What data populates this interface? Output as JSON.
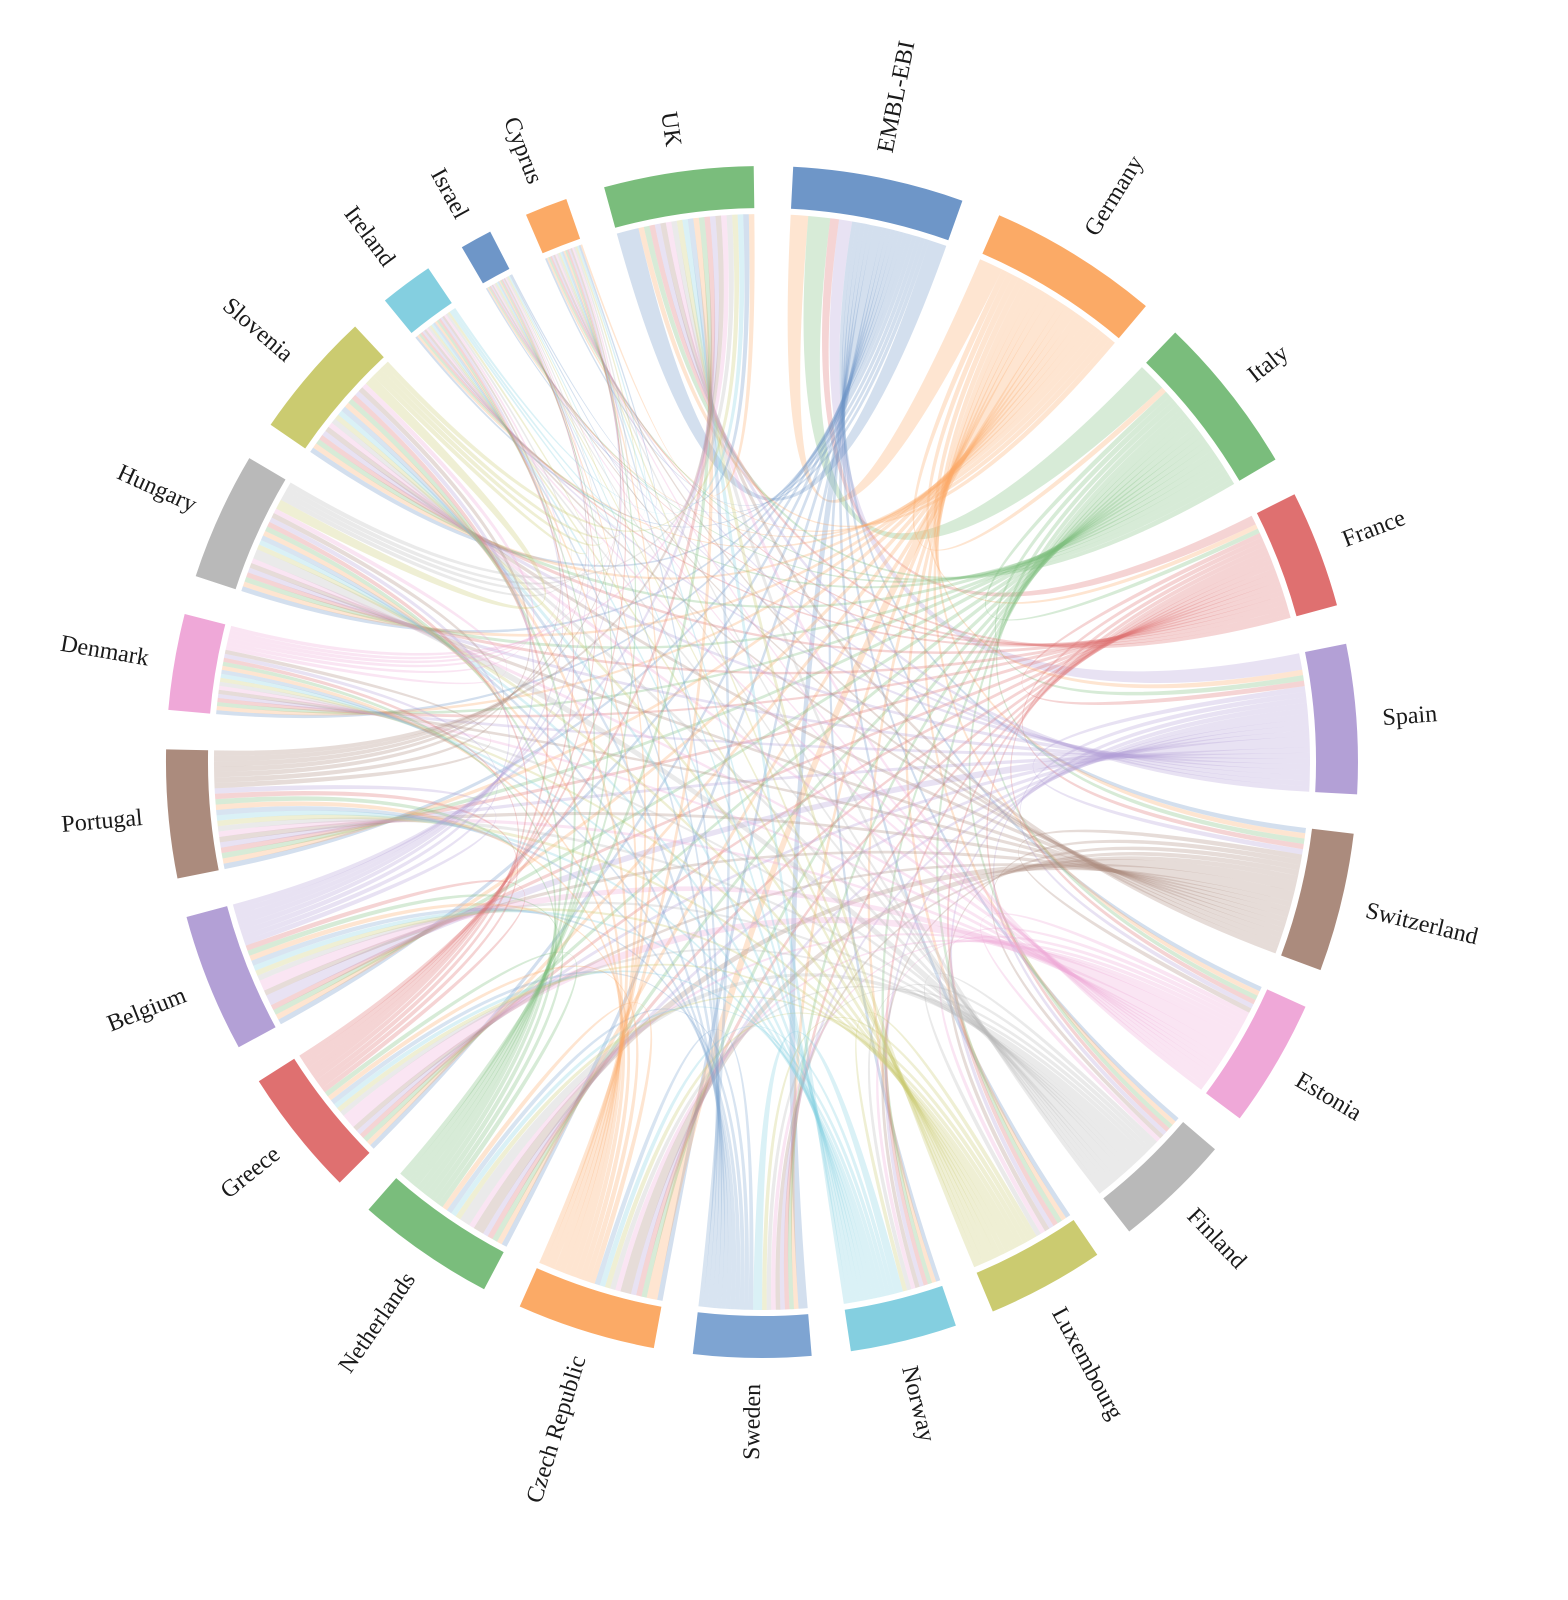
{
  "chart_data": {
    "type": "chord",
    "title": "",
    "nodes": [
      {
        "name": "EMBL-EBI",
        "color": "#6e96c8",
        "value": 16
      },
      {
        "name": "Germany",
        "color": "#fbaa66",
        "value": 16
      },
      {
        "name": "Italy",
        "color": "#7abd7c",
        "value": 15
      },
      {
        "name": "France",
        "color": "#df7070",
        "value": 11
      },
      {
        "name": "Spain",
        "color": "#b3a0d6",
        "value": 14
      },
      {
        "name": "Switzerland",
        "color": "#ab8b7d",
        "value": 13
      },
      {
        "name": "Estonia",
        "color": "#efa8d8",
        "value": 12
      },
      {
        "name": "Finland",
        "color": "#b9b9b9",
        "value": 11
      },
      {
        "name": "Luxembourg",
        "color": "#cbcb70",
        "value": 11
      },
      {
        "name": "Norway",
        "color": "#84cfe0",
        "value": 10
      },
      {
        "name": "Sweden",
        "color": "#7ea4d2",
        "value": 11
      },
      {
        "name": "Czech Republic",
        "color": "#fbaa66",
        "value": 13
      },
      {
        "name": "Netherlands",
        "color": "#7abd7c",
        "value": 13
      },
      {
        "name": "Greece",
        "color": "#df7070",
        "value": 12
      },
      {
        "name": "Belgium",
        "color": "#b3a0d6",
        "value": 13
      },
      {
        "name": "Portugal",
        "color": "#ab8b7d",
        "value": 12
      },
      {
        "name": "Denmark",
        "color": "#efa8d8",
        "value": 9
      },
      {
        "name": "Hungary",
        "color": "#b9b9b9",
        "value": 12
      },
      {
        "name": "Slovenia",
        "color": "#cbcb70",
        "value": 12
      },
      {
        "name": "Ireland",
        "color": "#84cfe0",
        "value": 5
      },
      {
        "name": "Israel",
        "color": "#6e96c8",
        "value": 3
      },
      {
        "name": "Cyprus",
        "color": "#fbaa66",
        "value": 4
      },
      {
        "name": "UK",
        "color": "#7abd7c",
        "value": 14
      }
    ],
    "connectivity": "all-pairs",
    "link_default_value": 1,
    "heavy_links": [
      [
        "EMBL-EBI",
        "UK",
        4
      ],
      [
        "EMBL-EBI",
        "Sweden",
        2
      ],
      [
        "Italy",
        "EMBL-EBI",
        5
      ],
      [
        "Germany",
        "EMBL-EBI",
        4
      ],
      [
        "Germany",
        "Czech Republic",
        2
      ],
      [
        "France",
        "EMBL-EBI",
        2
      ],
      [
        "Spain",
        "EMBL-EBI",
        3
      ],
      [
        "Spain",
        "Belgium",
        2
      ],
      [
        "Switzerland",
        "Czech Republic",
        2
      ],
      [
        "Switzerland",
        "Netherlands",
        2
      ],
      [
        "Estonia",
        "Greece",
        3
      ],
      [
        "Estonia",
        "Belgium",
        2
      ],
      [
        "Finland",
        "Netherlands",
        2
      ],
      [
        "Finland",
        "Hungary",
        2
      ],
      [
        "Slovenia",
        "Hungary",
        2
      ],
      [
        "Norway",
        "Sweden",
        2
      ]
    ],
    "layout": {
      "start_angle_deg": 3,
      "gap_deg": 3.8,
      "chord_opacity": 0.3,
      "legend": "none",
      "grid": false
    }
  }
}
